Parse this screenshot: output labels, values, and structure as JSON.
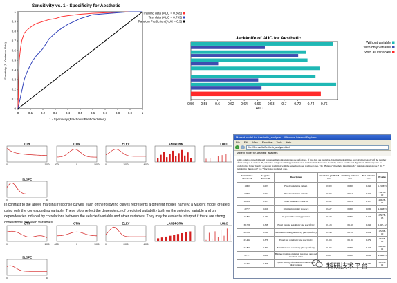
{
  "chart_data": [
    {
      "type": "line",
      "title": "Sensitivity vs. 1 - Specificity for Aesthetic",
      "xlabel": "1 - Specificity  (Fractional Predicted Area)",
      "ylabel": "Sensitivity (1 - Omission Rate)",
      "xlim": [
        0,
        1
      ],
      "ylim": [
        0,
        1
      ],
      "ticks": [
        "0",
        "0.1",
        "0.2",
        "0.3",
        "0.4",
        "0.5",
        "0.6",
        "0.7",
        "0.8",
        "0.9",
        "1"
      ],
      "legend_placement": "right",
      "series": [
        {
          "name": "Training data (AUC = 0.865)",
          "color": "#ff3333",
          "x": [
            0,
            0.005,
            0.01,
            0.02,
            0.03,
            0.05,
            0.08,
            0.1,
            0.12,
            0.15,
            0.2,
            0.25,
            0.3,
            0.35,
            0.4,
            0.5,
            0.6,
            0.7,
            0.8,
            0.9,
            1
          ],
          "y": [
            0,
            0.25,
            0.5,
            0.62,
            0.7,
            0.78,
            0.82,
            0.84,
            0.86,
            0.88,
            0.9,
            0.92,
            0.93,
            0.95,
            0.96,
            0.975,
            0.985,
            0.99,
            0.995,
            1,
            1
          ]
        },
        {
          "name": "Test data (AUC = 0.793)",
          "color": "#3344bb",
          "x": [
            0,
            0.02,
            0.05,
            0.08,
            0.1,
            0.12,
            0.15,
            0.2,
            0.25,
            0.3,
            0.35,
            0.4,
            0.45,
            0.5,
            0.6,
            0.7,
            0.8,
            0.9,
            1
          ],
          "y": [
            0,
            0.12,
            0.3,
            0.4,
            0.45,
            0.5,
            0.55,
            0.62,
            0.72,
            0.78,
            0.83,
            0.87,
            0.9,
            0.93,
            0.97,
            0.98,
            0.99,
            1,
            1
          ]
        },
        {
          "name": "Random Prediction (AUC = 0.5)",
          "color": "#000000",
          "x": [
            0,
            1
          ],
          "y": [
            0,
            1
          ]
        }
      ]
    },
    {
      "type": "bar",
      "orientation": "horizontal",
      "title": "Jackknife of AUC for Aesthetic",
      "xlabel": "AUC",
      "xlim": [
        0.56,
        0.78
      ],
      "ticks": [
        "0.56",
        "0.58",
        "0.6",
        "0.62",
        "0.64",
        "0.66",
        "0.68",
        "0.7",
        "0.72",
        "0.74",
        "0.76"
      ],
      "legend_placement": "right",
      "legend": [
        {
          "name": "Without variable",
          "color": "#1fb8b5"
        },
        {
          "name": "With only variable",
          "color": "#3d4db0"
        },
        {
          "name": "With all variables",
          "color": "#ff2a2a"
        }
      ],
      "groups": [
        {
          "without": 0.773,
          "only": 0.671
        },
        {
          "without": 0.733,
          "only": 0.721
        },
        {
          "without": 0.735,
          "only": 0.601
        },
        {
          "without": 0.753,
          "only": null
        },
        {
          "without": 0.747,
          "only": 0.661
        },
        {
          "without": 0.778,
          "only": 0.666
        }
      ],
      "all_variables": 0.755
    },
    {
      "type": "line",
      "panel_group": "marginal",
      "panels": [
        {
          "title": "OTR",
          "kind": "line",
          "xticks": [
            "0",
            "1000"
          ]
        },
        {
          "title": "OTW",
          "kind": "line",
          "xticks": [
            "-5000",
            "0",
            "5000"
          ]
        },
        {
          "title": "ELEV",
          "kind": "line",
          "xticks": [
            "0",
            "2000",
            "4000"
          ]
        },
        {
          "title": "LANDFORM",
          "kind": "bar",
          "xticks": []
        },
        {
          "title": "LULC",
          "kind": "spike",
          "xticks": []
        },
        {
          "title": "SLOPE",
          "kind": "line",
          "xticks": [
            "0",
            "50"
          ]
        }
      ]
    },
    {
      "type": "line",
      "panel_group": "single",
      "panels": [
        {
          "title": "OTR",
          "kind": "line",
          "xticks": [
            "0",
            "1000"
          ]
        },
        {
          "title": "OTW",
          "kind": "line",
          "xticks": [
            "-5000",
            "0",
            "5000"
          ]
        },
        {
          "title": "ELEV",
          "kind": "line",
          "xticks": [
            "0",
            "2000",
            "4000"
          ]
        },
        {
          "title": "LANDFORM",
          "kind": "bar",
          "xticks": []
        },
        {
          "title": "LULC",
          "kind": "spike",
          "xticks": []
        },
        {
          "title": "SLOPE",
          "kind": "line",
          "xticks": [
            "0",
            "50"
          ]
        }
      ]
    }
  ],
  "paragraph": "In contrast to the above marginal response curves, each of the following curves represents a different model, namely, a Maxent model created using only the corresponding variable. These plots reflect the dependence of predicted suitability both on the selected variable and on dependencies induced by correlations between the selected variable and other variables. They may be easier to interpret if there are strong correlations between variables.",
  "browser": {
    "title": "Maxent model for Aesthetic_analyses - Windows Internet Explorer",
    "menu": [
      "File",
      "Edit",
      "View",
      "Favorites",
      "Tools",
      "Help"
    ],
    "url": "file:///D:/results/Aesthetic_analyses.html",
    "tab": "Maxent model for Aesthetic_analyses",
    "description": "Some common thresholds and corresponding omission rates are as follows. If test data are available, binomial probabilities are calculated exactly if the number of test samples is at most 25, otherwise using a normal approximation to the binomial. These are 1-sided p-values for the null hypothesis that test points are predicted no better than by a random prediction with the same fractional predicted area. The \"Balance\" threshold minimizes 6 * training omission rate + .04 * cumulative threshold + 1.6 * fractional predicted area.",
    "headers": [
      "Cumulative threshold",
      "Logistic threshold",
      "Description",
      "Fractional predicted area",
      "Training omission rate",
      "Test omission rate",
      "P-value"
    ],
    "rows": [
      [
        "1.000",
        "0.027",
        "Fixed cumulative value 1",
        "0.909",
        "0.000",
        "0.250",
        "1.213E-3"
      ],
      [
        "5.000",
        "0.092",
        "Fixed cumulative value 5",
        "0.594",
        "0.012",
        "0.250",
        "7.665E-10"
      ],
      [
        "10.000",
        "0.123",
        "Fixed cumulative value 10",
        "0.392",
        "0.053",
        "0.167",
        "4.002E-12"
      ],
      [
        "2.757",
        "0.059",
        "Minimum training presence",
        "0.827",
        "0.000",
        "0.000",
        "4.594E-3"
      ],
      [
        "13.804",
        "0.181",
        "10 percentile training presence",
        "0.278",
        "0.095",
        "0.167",
        "2.567E-13"
      ],
      [
        "36.729",
        "0.398",
        "Equal training sensitivity and specificity",
        "0.128",
        "0.140",
        "0.250",
        "2.82E-12"
      ],
      [
        "28.361",
        "0.394",
        "Maximum training sensitivity plus specificity",
        "0.144",
        "0.119",
        "0.209",
        "1.329E-10"
      ],
      [
        "27.494",
        "0.376",
        "Equal test sensitivity and specificity",
        "0.168",
        "0.116",
        "0.279",
        "1.376E-10"
      ],
      [
        "22.817",
        "0.337",
        "Maximum test sensitivity plus specificity",
        "0.193",
        "0.099",
        "0.167",
        "2.484E-12"
      ],
      [
        "2.757",
        "0.059",
        "Balance training omission, predicted area and threshold value",
        "0.827",
        "0.000",
        "0.000",
        "4.594E-3"
      ],
      [
        "17.694",
        "0.306",
        "Equate entropy of thresholded and original distributions",
        "0.228",
        "0.107",
        "0.209",
        "3.122E-12"
      ]
    ]
  },
  "watermark": "科研技术平台",
  "colors": {
    "train": "#ff3333",
    "test": "#3344bb",
    "red": "#d42020",
    "cyan": "#1fb8b5",
    "navy": "#3d4db0",
    "allvar": "#ff2a2a"
  }
}
